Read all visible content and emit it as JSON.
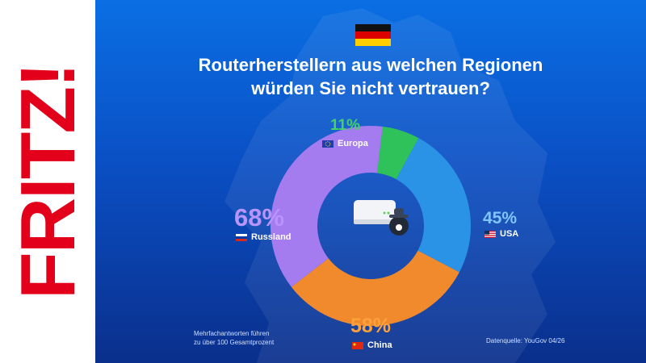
{
  "brand": {
    "logo_text": "FRITZ!"
  },
  "chart_data": {
    "type": "pie",
    "title": "Routerherstellern aus welchen Regionen würden Sie nicht vertrauen?",
    "title_lines": [
      "Routerherstellern aus welchen Regionen",
      "würden Sie nicht vertrauen?"
    ],
    "categories": [
      "Europa",
      "USA",
      "China",
      "Russland"
    ],
    "values": [
      11,
      45,
      58,
      68
    ],
    "value_labels": [
      "11%",
      "45%",
      "58%",
      "68%"
    ],
    "colors": [
      "#2fc25b",
      "#2b93e6",
      "#f08a2c",
      "#a57bf0"
    ],
    "label_colors": [
      "#44d06a",
      "#7fc6ff",
      "#ffa13a",
      "#b994ff"
    ],
    "legend_placement": "beside-each-slice"
  },
  "footnotes": {
    "left_line1": "Mehrfachantworten führen",
    "left_line2": "zu über 100 Gesamtprozent",
    "source": "Datenquelle: YouGov 04/26"
  },
  "icons": [
    "germany-flag-icon",
    "eu-flag-icon",
    "usa-flag-icon",
    "china-flag-icon",
    "russia-flag-icon",
    "router-spy-icon"
  ]
}
